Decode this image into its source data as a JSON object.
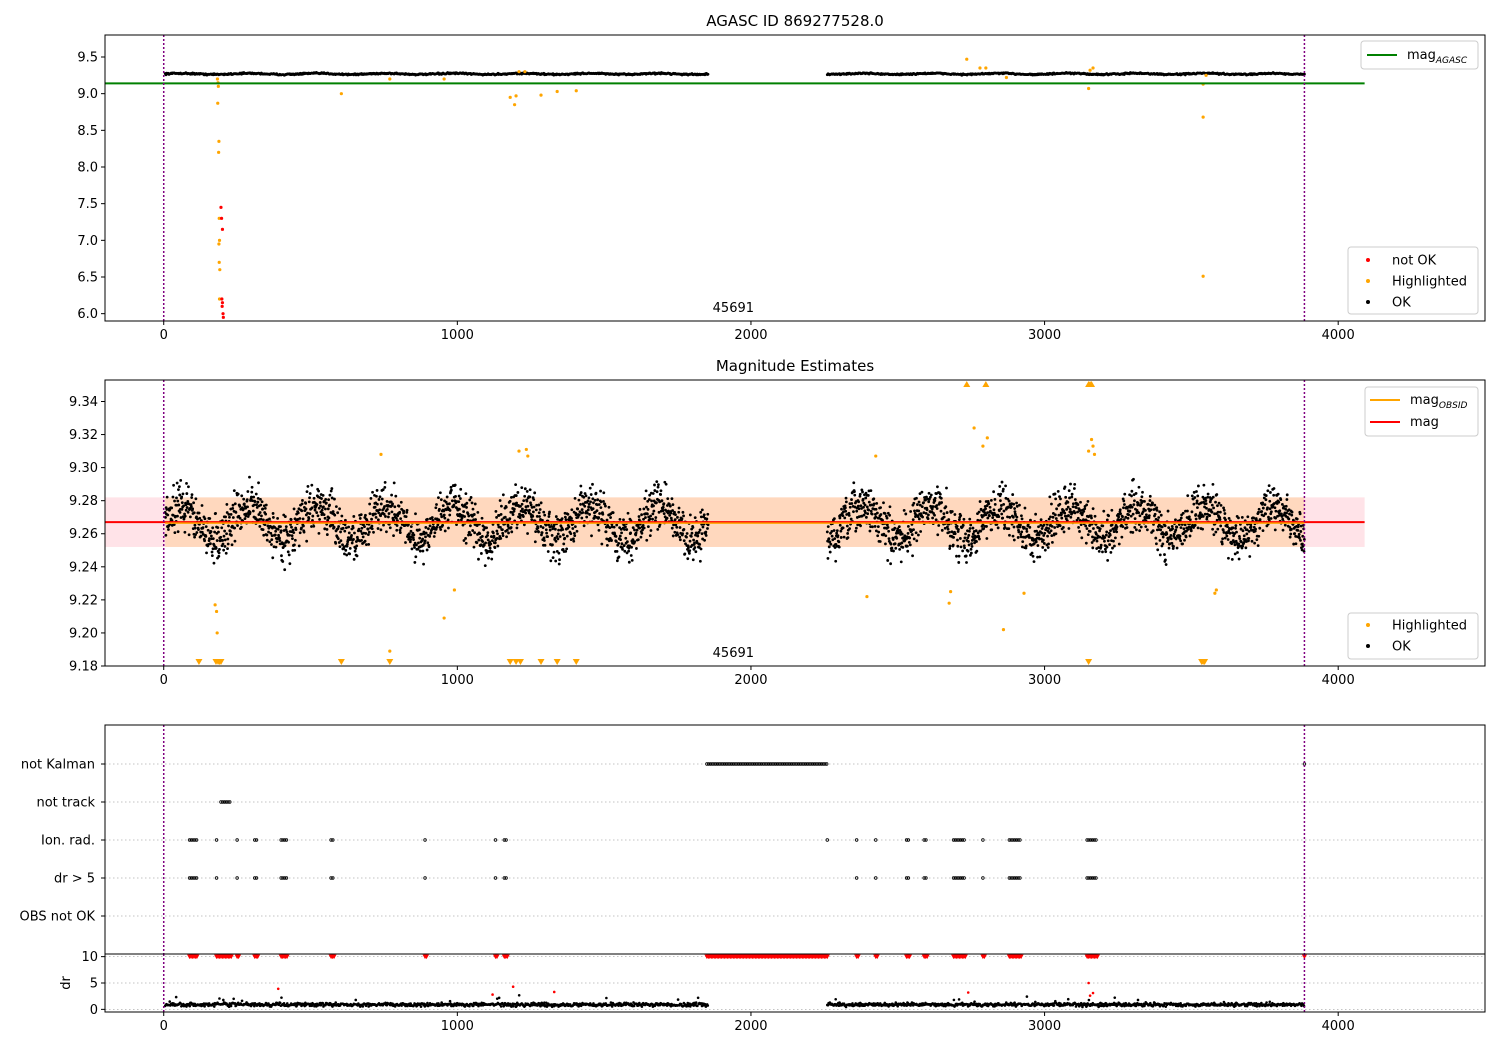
{
  "colors": {
    "ok": "#000000",
    "highlighted": "#ffa500",
    "not_ok": "#ff0000",
    "agasc_line": "#008000",
    "obsid_line": "#ffa500",
    "mag_line": "#ff0000",
    "band": "#ffc0cb",
    "vline": "#800080",
    "grid": "#b0b0b0"
  },
  "chart_data": [
    {
      "type": "scatter",
      "title": "AGASC ID 869277528.0",
      "xlim": [
        -200,
        4500
      ],
      "ylim": [
        5.9,
        9.8
      ],
      "xticks": [
        0,
        1000,
        2000,
        3000,
        4000
      ],
      "yticks": [
        6.0,
        6.5,
        7.0,
        7.5,
        8.0,
        8.5,
        9.0,
        9.5
      ],
      "annotation": "45691",
      "vlines": [
        0,
        3885
      ],
      "hlines": [
        {
          "name": "mag",
          "sub": "AGASC",
          "y": 9.14,
          "x": [
            -200,
            4090
          ]
        }
      ],
      "legend_lines": [
        {
          "label": "mag",
          "sub": "AGASC"
        }
      ],
      "legend_points": [
        "not OK",
        "Highlighted",
        "OK"
      ],
      "ok_segments": [
        {
          "x": [
            5,
            1855
          ],
          "y": 9.27,
          "spread": 0.015
        },
        {
          "x": [
            2260,
            3885
          ],
          "y": 9.27,
          "spread": 0.015
        }
      ],
      "highlighted": [
        [
          183,
          9.2
        ],
        [
          185,
          9.15
        ],
        [
          186,
          9.1
        ],
        [
          184,
          8.87
        ],
        [
          188,
          8.35
        ],
        [
          187,
          8.2
        ],
        [
          189,
          7.3
        ],
        [
          190,
          7.0
        ],
        [
          188,
          6.95
        ],
        [
          189,
          6.7
        ],
        [
          191,
          6.6
        ],
        [
          190,
          6.2
        ],
        [
          605,
          9.0
        ],
        [
          770,
          9.2
        ],
        [
          955,
          9.2
        ],
        [
          1180,
          8.95
        ],
        [
          1195,
          8.85
        ],
        [
          1200,
          8.97
        ],
        [
          1285,
          8.98
        ],
        [
          1340,
          9.03
        ],
        [
          1405,
          9.04
        ],
        [
          1210,
          9.3
        ],
        [
          1230,
          9.3
        ],
        [
          2735,
          9.47
        ],
        [
          2780,
          9.35
        ],
        [
          2800,
          9.35
        ],
        [
          3150,
          9.07
        ],
        [
          3155,
          9.32
        ],
        [
          3165,
          9.35
        ],
        [
          3540,
          9.13
        ],
        [
          3540,
          8.68
        ],
        [
          3540,
          6.51
        ],
        [
          3550,
          9.25
        ],
        [
          2870,
          9.22
        ]
      ],
      "not_ok": [
        [
          195,
          7.45
        ],
        [
          197,
          7.3
        ],
        [
          200,
          7.15
        ],
        [
          198,
          6.2
        ],
        [
          200,
          6.15
        ],
        [
          202,
          6.0
        ],
        [
          203,
          5.95
        ],
        [
          199,
          6.1
        ]
      ]
    },
    {
      "type": "scatter",
      "title": "Magnitude Estimates",
      "xlim": [
        -200,
        4500
      ],
      "ylim": [
        9.18,
        9.353
      ],
      "xticks": [
        0,
        1000,
        2000,
        3000,
        4000
      ],
      "yticks": [
        9.18,
        9.2,
        9.22,
        9.24,
        9.26,
        9.28,
        9.3,
        9.32,
        9.34
      ],
      "annotation": "45691",
      "vlines": [
        0,
        3885
      ],
      "hlines": [
        {
          "name": "mag",
          "y": 9.267,
          "x": [
            -200,
            4090
          ]
        }
      ],
      "band": {
        "y": [
          9.252,
          9.282
        ],
        "x": [
          -200,
          4090
        ]
      },
      "legend_lines": [
        {
          "label": "mag",
          "sub": "OBSID"
        },
        {
          "label": "mag"
        }
      ],
      "legend_points": [
        "Highlighted",
        "OK"
      ],
      "ok_segments": [
        {
          "x": [
            5,
            1855
          ],
          "y": 9.267,
          "spread": 0.02
        },
        {
          "x": [
            2260,
            3885
          ],
          "y": 9.267,
          "spread": 0.02
        }
      ],
      "highlighted": [
        [
          175,
          9.217
        ],
        [
          180,
          9.213
        ],
        [
          182,
          9.2
        ],
        [
          990,
          9.226
        ],
        [
          955,
          9.209
        ],
        [
          770,
          9.189
        ],
        [
          740,
          9.308
        ],
        [
          1210,
          9.31
        ],
        [
          1235,
          9.311
        ],
        [
          1240,
          9.307
        ],
        [
          2425,
          9.307
        ],
        [
          2395,
          9.222
        ],
        [
          2675,
          9.218
        ],
        [
          2680,
          9.225
        ],
        [
          2760,
          9.324
        ],
        [
          2790,
          9.313
        ],
        [
          2805,
          9.318
        ],
        [
          2860,
          9.202
        ],
        [
          2930,
          9.224
        ],
        [
          3150,
          9.31
        ],
        [
          3160,
          9.317
        ],
        [
          3165,
          9.313
        ],
        [
          3170,
          9.308
        ],
        [
          3580,
          9.224
        ],
        [
          3585,
          9.226
        ]
      ],
      "markers_bottom": [
        120,
        178,
        185,
        190,
        195,
        605,
        770,
        1180,
        1200,
        1215,
        1285,
        1340,
        1405,
        3150,
        3535,
        3540,
        3545
      ],
      "markers_top": [
        2735,
        2800,
        3150,
        3155,
        3160
      ]
    },
    {
      "type": "scatter",
      "xlim": [
        -200,
        4500
      ],
      "categories": [
        "not Kalman",
        "not track",
        "Ion. rad.",
        "dr > 5",
        "OBS not OK"
      ],
      "vlines": [
        0,
        3885
      ],
      "flags": {
        "not Kalman": [
          [
            1850,
            2260
          ],
          [
            3885,
            3885
          ]
        ],
        "not track": [
          [
            195,
            225
          ]
        ],
        "Ion. rad.": [
          [
            88,
            115
          ],
          [
            180,
            185
          ],
          [
            250,
            255
          ],
          [
            310,
            320
          ],
          [
            400,
            420
          ],
          [
            570,
            580
          ],
          [
            890,
            895
          ],
          [
            1130,
            1135
          ],
          [
            1160,
            1170
          ],
          [
            2260,
            2265
          ],
          [
            2360,
            2365
          ],
          [
            2425,
            2430
          ],
          [
            2530,
            2540
          ],
          [
            2590,
            2600
          ],
          [
            2690,
            2730
          ],
          [
            2790,
            2795
          ],
          [
            2880,
            2920
          ],
          [
            3145,
            3180
          ]
        ],
        "dr > 5": [
          [
            88,
            115
          ],
          [
            180,
            185
          ],
          [
            250,
            255
          ],
          [
            310,
            320
          ],
          [
            400,
            420
          ],
          [
            570,
            580
          ],
          [
            890,
            895
          ],
          [
            1130,
            1135
          ],
          [
            1160,
            1170
          ],
          [
            2360,
            2365
          ],
          [
            2425,
            2430
          ],
          [
            2530,
            2540
          ],
          [
            2590,
            2600
          ],
          [
            2690,
            2730
          ],
          [
            2790,
            2795
          ],
          [
            2880,
            2920
          ],
          [
            3145,
            3180
          ]
        ],
        "OBS not OK": []
      }
    },
    {
      "type": "scatter",
      "ylabel": "dr",
      "xlim": [
        -200,
        4500
      ],
      "ylim": [
        -0.5,
        10.5
      ],
      "xticks": [
        0,
        1000,
        2000,
        3000,
        4000
      ],
      "yticks": [
        0,
        5,
        10
      ],
      "vlines": [
        0,
        3885
      ],
      "ok_segments": [
        {
          "x": [
            5,
            1855
          ],
          "y": 0.9,
          "spread": 0.5
        },
        {
          "x": [
            2260,
            3885
          ],
          "y": 0.9,
          "spread": 0.5
        }
      ],
      "capped": [
        [
          88,
          115
        ],
        [
          180,
          230
        ],
        [
          250,
          255
        ],
        [
          310,
          320
        ],
        [
          400,
          420
        ],
        [
          570,
          580
        ],
        [
          890,
          895
        ],
        [
          1130,
          1135
        ],
        [
          1160,
          1170
        ],
        [
          1850,
          2260
        ],
        [
          2360,
          2365
        ],
        [
          2425,
          2430
        ],
        [
          2530,
          2540
        ],
        [
          2590,
          2600
        ],
        [
          2690,
          2730
        ],
        [
          2790,
          2795
        ],
        [
          2880,
          2920
        ],
        [
          3145,
          3180
        ],
        [
          3885,
          3885
        ]
      ],
      "red_points": [
        [
          390,
          3.9
        ],
        [
          1120,
          2.8
        ],
        [
          1190,
          4.3
        ],
        [
          1330,
          3.3
        ],
        [
          2740,
          3.2
        ],
        [
          3150,
          5.0
        ],
        [
          3155,
          2.6
        ],
        [
          3165,
          3.1
        ]
      ]
    }
  ]
}
